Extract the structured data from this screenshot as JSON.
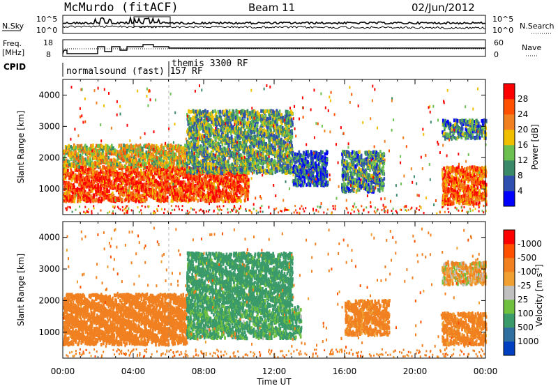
{
  "header": {
    "station": "McMurdo (fitACF)",
    "beam": "Beam 11",
    "date": "02/Jun/2012"
  },
  "noise_panel": {
    "left_label": "N.Sky",
    "right_label": "N.Search",
    "left_ticks": [
      "10^5",
      "10^0"
    ],
    "right_ticks": [
      "10^5",
      "10^0"
    ]
  },
  "freq_panel": {
    "left_label_line1": "Freq.",
    "left_label_line2": "[MHz]",
    "left_ticks": [
      "18",
      "8"
    ],
    "right_label": "Nave",
    "right_ticks": [
      "60",
      "0"
    ]
  },
  "cpid": {
    "label": "CPID",
    "program1": "normalsound (fast) 157 RF",
    "program2": "themis 3300 RF"
  },
  "colors": {
    "power_scale": [
      "#0000ff",
      "#3050b0",
      "#3a8a6a",
      "#6cc050",
      "#f0c000",
      "#f08020",
      "#ff5000",
      "#ff0000"
    ],
    "velocity_scale": [
      "#0040c0",
      "#3070a0",
      "#3a9a6a",
      "#70c040",
      "#c0c0c0",
      "#f0a030",
      "#f08020",
      "#ff5000",
      "#ff0000"
    ]
  },
  "chart_data": [
    {
      "type": "heatmap",
      "name": "power",
      "ylabel": "Slant Range [km]",
      "xlabel": "Time UT",
      "xlim": [
        "00:00",
        "24:00"
      ],
      "ylim": [
        180,
        4500
      ],
      "x_ticks": [
        "00:00",
        "04:00",
        "08:00",
        "12:00",
        "16:00",
        "20:00",
        "00:00"
      ],
      "y_ticks": [
        1000,
        2000,
        3000,
        4000
      ],
      "colorbar_label": "Power [dB]",
      "colorbar_ticks": [
        4,
        8,
        12,
        16,
        20,
        24,
        28
      ],
      "scatter_regions": [
        {
          "t": [
            0.0,
            10.5
          ],
          "range": [
            600,
            1700
          ],
          "power": 28
        },
        {
          "t": [
            0.0,
            7.0
          ],
          "range": [
            1700,
            2400
          ],
          "power": 20
        },
        {
          "t": [
            7.0,
            13.0
          ],
          "range": [
            1500,
            3500
          ],
          "power": 14
        },
        {
          "t": [
            13.0,
            15.0
          ],
          "range": [
            1100,
            2200
          ],
          "power": 8
        },
        {
          "t": [
            15.8,
            18.2
          ],
          "range": [
            900,
            2200
          ],
          "power": 12
        },
        {
          "t": [
            21.5,
            24.0
          ],
          "range": [
            500,
            1700
          ],
          "power": 26
        },
        {
          "t": [
            21.5,
            24.0
          ],
          "range": [
            2600,
            3200
          ],
          "power": 12
        }
      ]
    },
    {
      "type": "heatmap",
      "name": "velocity",
      "ylabel": "Slant Range [km]",
      "xlabel": "Time UT",
      "xlim": [
        "00:00",
        "24:00"
      ],
      "ylim": [
        180,
        4500
      ],
      "x_ticks": [
        "00:00",
        "04:00",
        "08:00",
        "12:00",
        "16:00",
        "20:00",
        "00:00"
      ],
      "y_ticks": [
        1000,
        2000,
        3000,
        4000
      ],
      "colorbar_label": "Velocity [m s^-1]",
      "colorbar_ticks": [
        "1000",
        "500",
        "100",
        "25",
        "-25",
        "-100",
        "-500",
        "-1000"
      ],
      "scatter_regions": [
        {
          "t": [
            0.0,
            7.0
          ],
          "range": [
            600,
            2200
          ],
          "velocity": -300
        },
        {
          "t": [
            7.0,
            13.5
          ],
          "range": [
            800,
            1800
          ],
          "velocity": 150
        },
        {
          "t": [
            7.0,
            13.0
          ],
          "range": [
            1800,
            3500
          ],
          "velocity": 200
        },
        {
          "t": [
            16.0,
            18.5
          ],
          "range": [
            900,
            2000
          ],
          "velocity": -200
        },
        {
          "t": [
            21.5,
            24.0
          ],
          "range": [
            600,
            1600
          ],
          "velocity": -200
        },
        {
          "t": [
            21.5,
            24.0
          ],
          "range": [
            2500,
            3200
          ],
          "velocity": -60
        }
      ]
    }
  ],
  "footer": {
    "x_ticks": [
      "00:00",
      "04:00",
      "08:00",
      "12:00",
      "16:00",
      "20:00",
      "00:00"
    ],
    "xlabel": "Time UT"
  }
}
